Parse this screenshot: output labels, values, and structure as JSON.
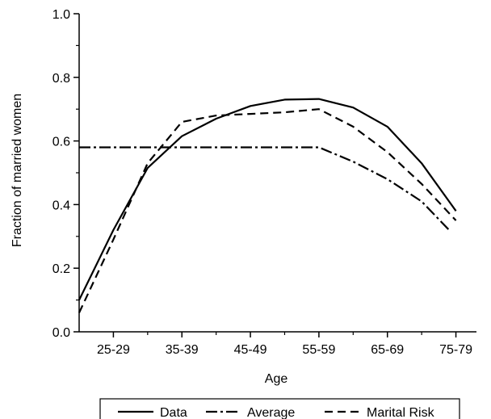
{
  "chart_data": {
    "type": "line",
    "xlabel": "Age",
    "ylabel": "Fraction of married women",
    "x_tick_labels": [
      "25-29",
      "35-39",
      "45-49",
      "55-59",
      "65-69",
      "75-79"
    ],
    "x_range": [
      22,
      80
    ],
    "ylim": [
      0.0,
      1.0
    ],
    "y_ticks": [
      0.0,
      0.2,
      0.4,
      0.6,
      0.8,
      1.0
    ],
    "y_tick_labels": [
      "0.0",
      "0.2",
      "0.4",
      "0.6",
      "0.8",
      "1.0"
    ],
    "grid": false,
    "legend_position": "bottom",
    "series": [
      {
        "name": "Data",
        "style": "solid",
        "x": [
          22,
          27,
          32,
          37,
          42,
          47,
          52,
          57,
          62,
          67,
          72,
          77
        ],
        "y": [
          0.1,
          0.32,
          0.515,
          0.615,
          0.67,
          0.71,
          0.73,
          0.732,
          0.705,
          0.645,
          0.53,
          0.38
        ]
      },
      {
        "name": "Average",
        "style": "dashdot",
        "x": [
          22,
          27,
          32,
          37,
          42,
          47,
          52,
          57,
          62,
          67,
          72,
          76
        ],
        "y": [
          0.58,
          0.58,
          0.58,
          0.58,
          0.58,
          0.58,
          0.58,
          0.58,
          0.535,
          0.48,
          0.41,
          0.32
        ]
      },
      {
        "name": "Marital Risk",
        "style": "dashed",
        "x": [
          22,
          27,
          32,
          37,
          42,
          47,
          52,
          57,
          62,
          67,
          72,
          77
        ],
        "y": [
          0.06,
          0.29,
          0.53,
          0.66,
          0.68,
          0.685,
          0.69,
          0.7,
          0.645,
          0.565,
          0.465,
          0.35
        ]
      }
    ]
  }
}
